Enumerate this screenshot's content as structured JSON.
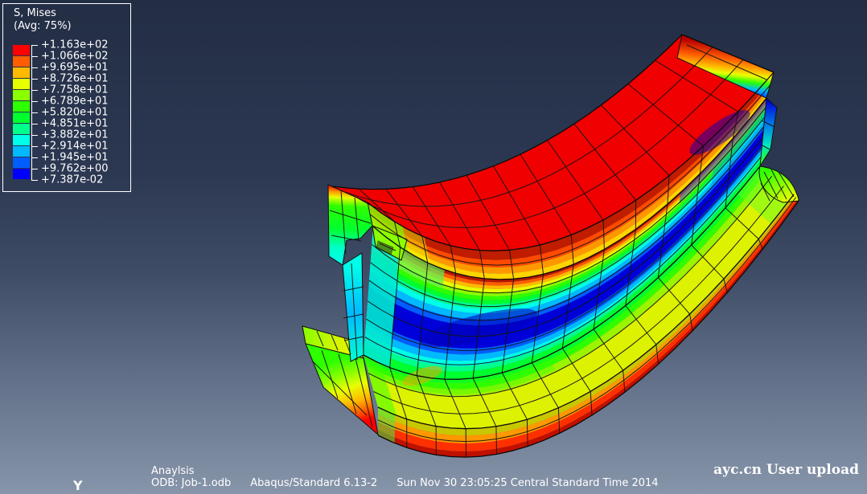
{
  "legend": {
    "title": "S, Mises",
    "subtitle": "(Avg: 75%)",
    "values": [
      "+1.163e+02",
      "+1.066e+02",
      "+9.695e+01",
      "+8.726e+01",
      "+7.758e+01",
      "+6.789e+01",
      "+5.820e+01",
      "+4.851e+01",
      "+3.882e+01",
      "+2.914e+01",
      "+1.945e+01",
      "+9.762e+00",
      "+7.387e-02"
    ],
    "colors": [
      "#FF0000",
      "#FF5D00",
      "#FFB900",
      "#E8FF00",
      "#8BFF00",
      "#2EFF00",
      "#00FF2E",
      "#00FF8B",
      "#00FFE8",
      "#00B9FF",
      "#005DFF",
      "#0000FF"
    ]
  },
  "status": {
    "line1": "Anaylsis",
    "odb": "ODB: Job-1.odb",
    "solver": "Abaqus/Standard 6.13-2",
    "datetime": "Sun Nov 30 23:05:25 Central Standard Time 2014"
  },
  "watermark": "ayc.cn User upload",
  "triad": {
    "axis_label": "Y"
  },
  "background": {
    "top": "#232E45",
    "bottom": "#8795AA"
  },
  "chart_data": {
    "type": "heatmap",
    "title": "S, Mises",
    "subtitle": "(Avg: 75%)",
    "field": "von Mises stress contour on deformed finite-element beam model",
    "legend_labels": [
      "+1.163e+02",
      "+1.066e+02",
      "+9.695e+01",
      "+8.726e+01",
      "+7.758e+01",
      "+6.789e+01",
      "+5.820e+01",
      "+4.851e+01",
      "+3.882e+01",
      "+2.914e+01",
      "+1.945e+01",
      "+9.762e+00",
      "+7.387e-02"
    ],
    "legend_colors": [
      "#FF0000",
      "#FF5D00",
      "#FFB900",
      "#E8FF00",
      "#8BFF00",
      "#2EFF00",
      "#00FF2E",
      "#00FF8B",
      "#00FFE8",
      "#00B9FF",
      "#005DFF",
      "#0000FF"
    ],
    "value_range": [
      0.07387,
      116.3
    ],
    "legend_position": "top-left",
    "description": "I-section (rail profile) beam segment bent concave-up, shown in isometric view: top flange at maximum stress (red ~116), dark-blue minimum band along web neutral axis (~0.07), bottom flange yellow/orange (~60-100) with red bottom edge; hexahedral mesh lines drawn in black.",
    "annotations": [
      "Anaylsis",
      "ODB: Job-1.odb",
      "Abaqus/Standard 6.13-2",
      "Sun Nov 30 23:05:25 Central Standard Time 2014",
      "Y",
      "ayc.cn User upload"
    ]
  }
}
